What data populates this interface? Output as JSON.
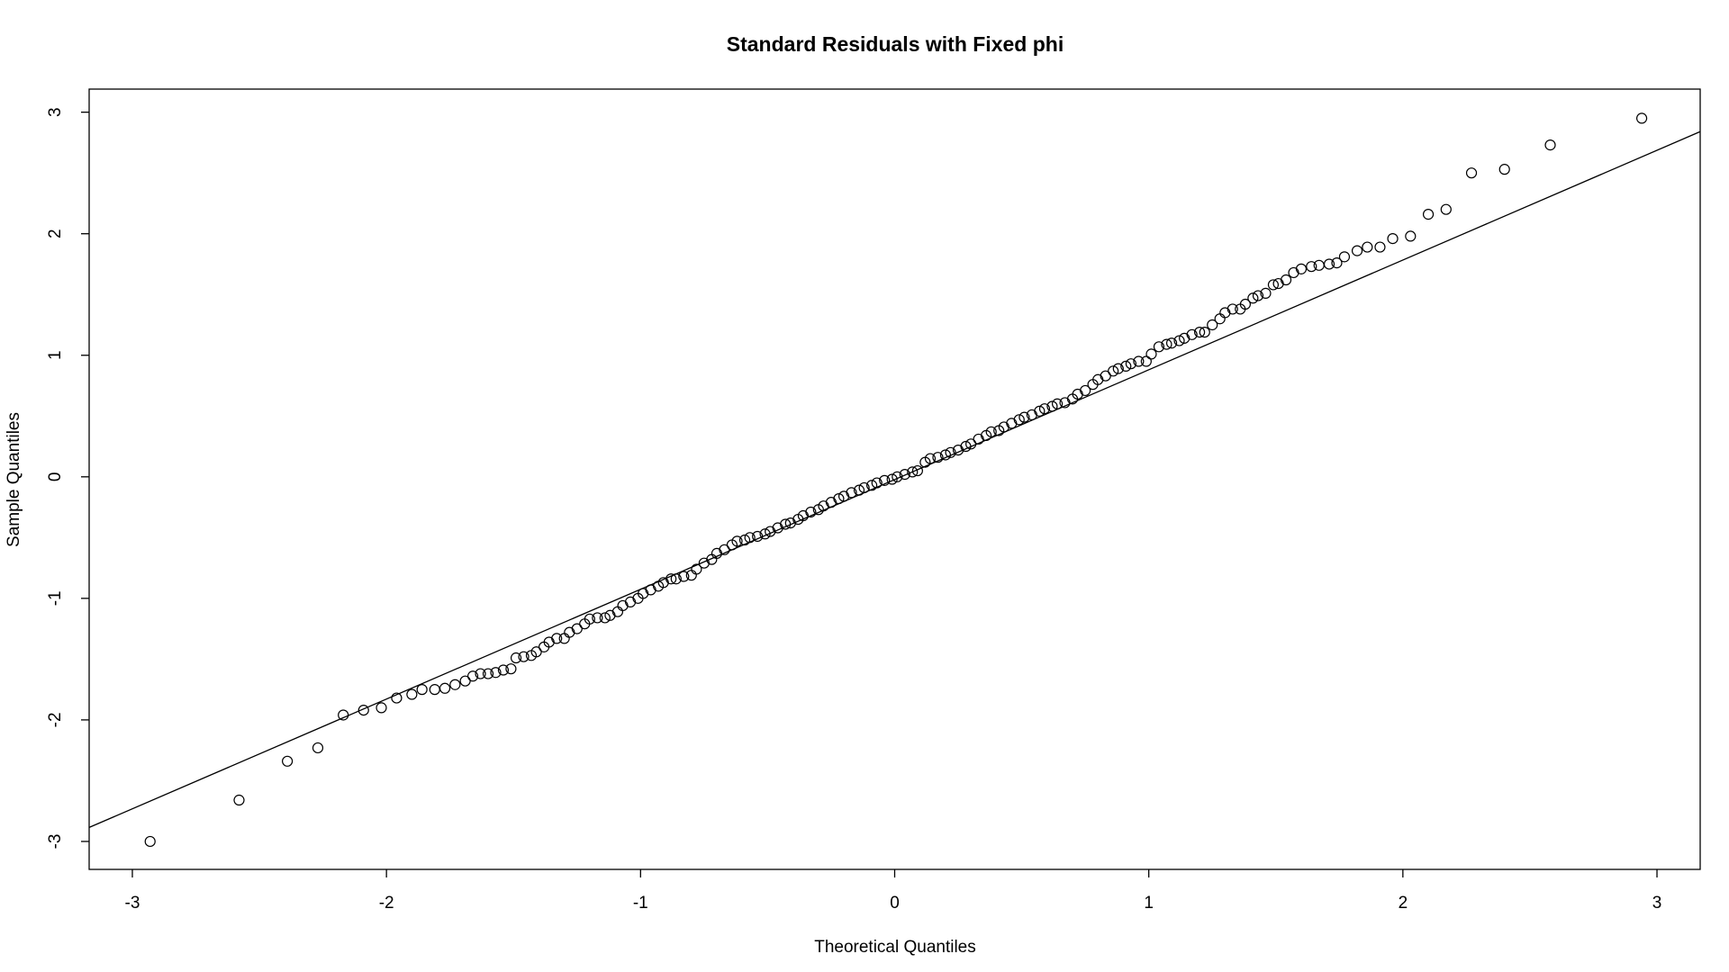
{
  "chart_data": {
    "type": "scatter",
    "title": "Standard Residuals with Fixed phi",
    "x_label": "Theoretical Quantiles",
    "y_label": "Sample Quantiles",
    "xlim": [
      -3.17,
      3.17
    ],
    "ylim": [
      -3.23,
      3.19
    ],
    "xticks": [
      -3,
      -2,
      -1,
      0,
      1,
      2,
      3
    ],
    "yticks": [
      -3,
      -2,
      -1,
      0,
      1,
      2,
      3
    ],
    "color": "#000000",
    "reference_line": {
      "x": [
        -3.17,
        3.17
      ],
      "y": [
        -2.885,
        2.84
      ]
    },
    "x": [
      -2.93,
      -2.58,
      -2.39,
      -2.27,
      -2.17,
      -2.09,
      -2.02,
      -1.96,
      -1.9,
      -1.86,
      -1.81,
      -1.77,
      -1.73,
      -1.69,
      -1.66,
      -1.63,
      -1.6,
      -1.57,
      -1.54,
      -1.51,
      -1.49,
      -1.46,
      -1.43,
      -1.41,
      -1.38,
      -1.36,
      -1.33,
      -1.3,
      -1.28,
      -1.25,
      -1.22,
      -1.2,
      -1.17,
      -1.14,
      -1.12,
      -1.09,
      -1.07,
      -1.04,
      -1.01,
      -0.99,
      -0.96,
      -0.93,
      -0.91,
      -0.88,
      -0.86,
      -0.83,
      -0.8,
      -0.78,
      -0.75,
      -0.72,
      -0.7,
      -0.67,
      -0.64,
      -0.62,
      -0.59,
      -0.57,
      -0.54,
      -0.51,
      -0.49,
      -0.46,
      -0.43,
      -0.41,
      -0.38,
      -0.36,
      -0.33,
      -0.3,
      -0.28,
      -0.25,
      -0.22,
      -0.2,
      -0.17,
      -0.14,
      -0.12,
      -0.09,
      -0.07,
      -0.04,
      -0.01,
      0.01,
      0.04,
      0.07,
      0.09,
      0.12,
      0.14,
      0.17,
      0.2,
      0.22,
      0.25,
      0.28,
      0.3,
      0.33,
      0.36,
      0.38,
      0.41,
      0.43,
      0.46,
      0.49,
      0.51,
      0.54,
      0.57,
      0.59,
      0.62,
      0.64,
      0.67,
      0.7,
      0.72,
      0.75,
      0.78,
      0.8,
      0.83,
      0.86,
      0.88,
      0.91,
      0.93,
      0.96,
      0.99,
      1.01,
      1.04,
      1.07,
      1.09,
      1.12,
      1.14,
      1.17,
      1.2,
      1.22,
      1.25,
      1.28,
      1.3,
      1.33,
      1.36,
      1.38,
      1.41,
      1.43,
      1.46,
      1.49,
      1.51,
      1.54,
      1.57,
      1.6,
      1.64,
      1.67,
      1.71,
      1.74,
      1.77,
      1.82,
      1.86,
      1.91,
      1.96,
      2.03,
      2.1,
      2.17,
      2.27,
      2.4,
      2.58,
      2.94
    ],
    "values": [
      -3.0,
      -2.66,
      -2.34,
      -2.23,
      -1.96,
      -1.92,
      -1.9,
      -1.82,
      -1.79,
      -1.75,
      -1.75,
      -1.74,
      -1.71,
      -1.68,
      -1.64,
      -1.62,
      -1.62,
      -1.61,
      -1.59,
      -1.58,
      -1.49,
      -1.48,
      -1.47,
      -1.44,
      -1.4,
      -1.36,
      -1.33,
      -1.33,
      -1.28,
      -1.25,
      -1.21,
      -1.17,
      -1.16,
      -1.16,
      -1.14,
      -1.11,
      -1.06,
      -1.03,
      -1.0,
      -0.96,
      -0.93,
      -0.9,
      -0.87,
      -0.84,
      -0.84,
      -0.82,
      -0.81,
      -0.76,
      -0.71,
      -0.68,
      -0.63,
      -0.6,
      -0.56,
      -0.53,
      -0.52,
      -0.5,
      -0.49,
      -0.47,
      -0.45,
      -0.42,
      -0.39,
      -0.38,
      -0.35,
      -0.32,
      -0.29,
      -0.27,
      -0.24,
      -0.21,
      -0.18,
      -0.16,
      -0.13,
      -0.11,
      -0.09,
      -0.07,
      -0.05,
      -0.03,
      -0.02,
      0.0,
      0.02,
      0.04,
      0.05,
      0.12,
      0.15,
      0.16,
      0.18,
      0.2,
      0.22,
      0.25,
      0.27,
      0.31,
      0.34,
      0.37,
      0.38,
      0.41,
      0.44,
      0.47,
      0.49,
      0.51,
      0.54,
      0.56,
      0.58,
      0.6,
      0.61,
      0.64,
      0.68,
      0.71,
      0.76,
      0.8,
      0.83,
      0.87,
      0.89,
      0.91,
      0.93,
      0.95,
      0.95,
      1.01,
      1.07,
      1.09,
      1.1,
      1.12,
      1.14,
      1.17,
      1.19,
      1.19,
      1.25,
      1.3,
      1.35,
      1.38,
      1.38,
      1.42,
      1.47,
      1.49,
      1.51,
      1.58,
      1.59,
      1.62,
      1.68,
      1.71,
      1.73,
      1.74,
      1.75,
      1.76,
      1.81,
      1.86,
      1.89,
      1.89,
      1.96,
      1.98,
      2.16,
      2.2,
      2.5,
      2.53,
      2.73,
      2.95
    ]
  }
}
